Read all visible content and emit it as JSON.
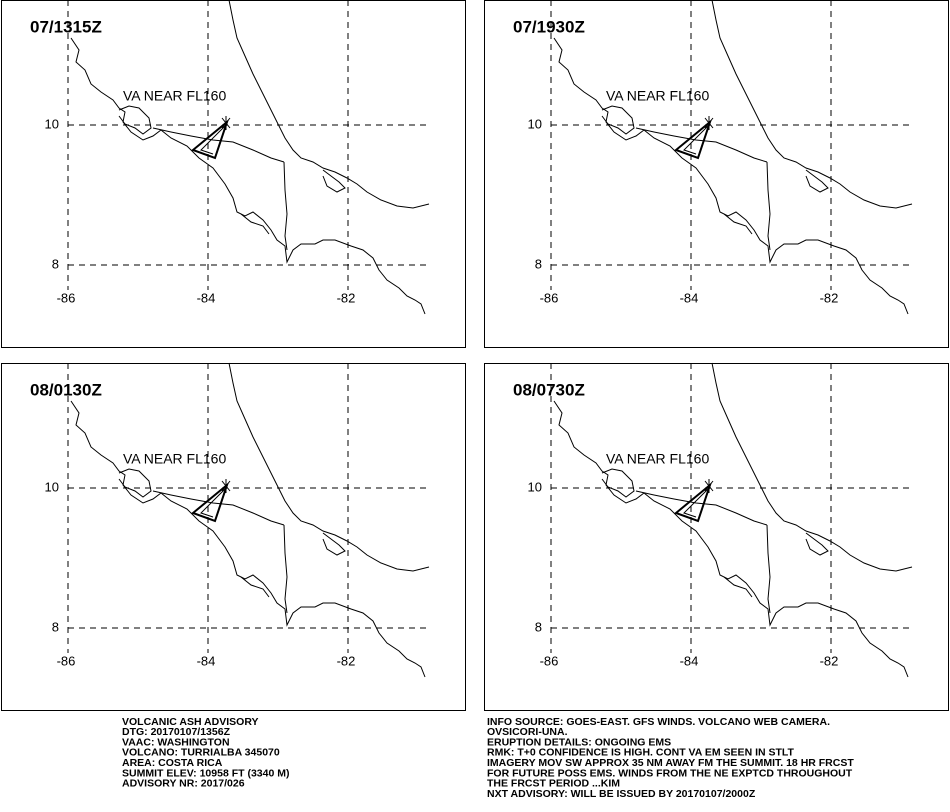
{
  "panels": [
    {
      "time": "07/1315Z",
      "label": "VA NEAR FL160"
    },
    {
      "time": "07/1930Z",
      "label": "VA NEAR FL160"
    },
    {
      "time": "08/0130Z",
      "label": "VA NEAR FL160"
    },
    {
      "time": "08/0730Z",
      "label": "VA NEAR FL160"
    }
  ],
  "axes": {
    "lon_labels": [
      "-86",
      "-84",
      "-82"
    ],
    "lat_labels": [
      "10",
      "8"
    ]
  },
  "advisory_left": [
    "VOLCANIC ASH ADVISORY",
    "DTG: 20170107/1356Z",
    "VAAC: WASHINGTON",
    "VOLCANO: TURRIALBA 345070",
    "AREA: COSTA RICA",
    "SUMMIT ELEV: 10958 FT (3340 M)",
    "ADVISORY NR: 2017/026"
  ],
  "advisory_right": [
    "INFO SOURCE: GOES-EAST. GFS WINDS. VOLCANO WEB CAMERA.",
    "OVSICORI-UNA.",
    "ERUPTION DETAILS: ONGOING EMS",
    "RMK: T+0 CONFIDENCE IS HIGH. CONT VA EM SEEN IN STLT",
    "IMAGERY MOV SW APPROX 35 NM AWAY FM THE SUMMIT. 18 HR FRCST",
    "FOR FUTURE POSS EMS. WINDS FROM THE NE EXPTCD THROUGHOUT",
    "THE FRCST PERIOD ...KIM",
    "NXT ADVISORY: WILL BE ISSUED BY 20170107/2000Z"
  ]
}
